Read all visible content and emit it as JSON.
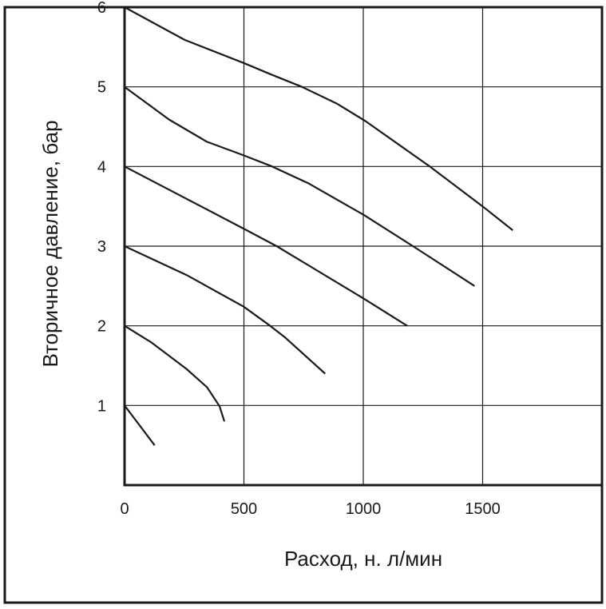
{
  "chart_data": {
    "type": "line",
    "title": "",
    "xlabel": "Расход, н. л/мин",
    "ylabel": "Вторичное давление, бар",
    "xlim": [
      0,
      2000
    ],
    "ylim": [
      0,
      6
    ],
    "xticks": [
      0,
      500,
      1000,
      1500
    ],
    "xtick_labels": [
      "0",
      "500",
      "1000",
      "1500"
    ],
    "yticks": [
      1,
      2,
      3,
      4,
      5,
      6
    ],
    "ytick_labels": [
      "1",
      "2",
      "3",
      "4",
      "5",
      "6"
    ],
    "grid": true,
    "colors": {
      "line": "#1a1a1a",
      "grid": "#1a1a1a"
    },
    "series": [
      {
        "x": [
          0,
          126
        ],
        "y": [
          1.0,
          0.5
        ]
      },
      {
        "x": [
          0,
          113,
          259,
          345,
          398,
          418
        ],
        "y": [
          2.0,
          1.79,
          1.46,
          1.23,
          0.99,
          0.8
        ]
      },
      {
        "x": [
          0,
          265,
          499,
          610,
          670,
          840
        ],
        "y": [
          3.0,
          2.63,
          2.24,
          2.0,
          1.86,
          1.4
        ]
      },
      {
        "x": [
          0,
          499,
          637,
          1003,
          1184
        ],
        "y": [
          4.0,
          3.22,
          3.0,
          2.34,
          2.0
        ]
      },
      {
        "x": [
          0,
          186,
          345,
          499,
          610,
          770,
          1003,
          1208,
          1466
        ],
        "y": [
          5.0,
          4.59,
          4.31,
          4.14,
          4.01,
          3.79,
          3.39,
          3.0,
          2.5
        ]
      },
      {
        "x": [
          0,
          252,
          499,
          610,
          743,
          889,
          1009,
          1274,
          1504,
          1626
        ],
        "y": [
          6.0,
          5.59,
          5.3,
          5.16,
          5.0,
          4.79,
          4.57,
          4.01,
          3.49,
          3.2
        ]
      }
    ]
  }
}
